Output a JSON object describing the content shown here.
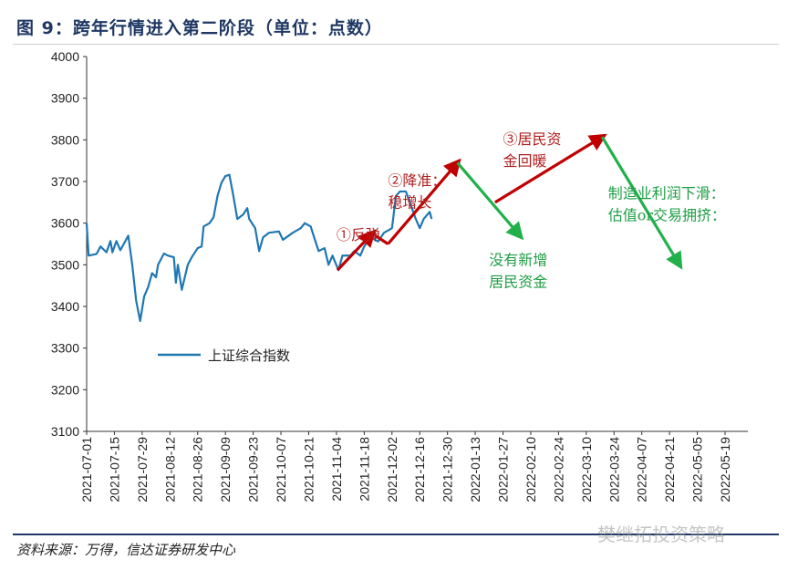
{
  "title": "图 9：跨年行情进入第二阶段（单位：点数）",
  "source": "资料来源：万得，信达证券研发中心",
  "watermark": "樊继拓投资策略",
  "colors": {
    "line": "#1f77b4",
    "up": "#c00000",
    "down": "#22b04b",
    "title": "#1f3864"
  },
  "chart_data": {
    "type": "line",
    "title": "跨年行情进入第二阶段（单位：点数）",
    "xlabel": "",
    "ylabel": "",
    "ylim": [
      3100,
      4000
    ],
    "yticks": [
      3100,
      3200,
      3300,
      3400,
      3500,
      3600,
      3700,
      3800,
      3900,
      4000
    ],
    "x_start_date": "2021-07-01",
    "x_range_days": [
      0,
      322
    ],
    "xticks": [
      "2021-07-01",
      "2021-07-15",
      "2021-07-29",
      "2021-08-12",
      "2021-08-26",
      "2021-09-09",
      "2021-09-23",
      "2021-10-07",
      "2021-10-21",
      "2021-11-04",
      "2021-11-18",
      "2021-12-02",
      "2021-12-16",
      "2021-12-30",
      "2022-01-13",
      "2022-01-27",
      "2022-02-10",
      "2022-02-24",
      "2022-03-10",
      "2022-03-24",
      "2022-04-07",
      "2022-04-21",
      "2022-05-05",
      "2022-05-19"
    ],
    "legend": {
      "label": "上证综合指数",
      "placement": "lower-left"
    },
    "series": [
      {
        "name": "上证综合指数",
        "days": [
          0,
          1,
          5,
          7,
          10,
          12,
          13,
          15,
          17,
          21,
          23,
          25,
          27,
          29,
          31,
          33,
          35,
          36,
          39,
          41,
          44,
          45,
          46,
          48,
          51,
          53,
          56,
          58,
          59,
          62,
          64,
          66,
          68,
          70,
          72,
          74,
          76,
          79,
          81,
          82,
          85,
          87,
          89,
          92,
          97,
          99,
          104,
          108,
          110,
          113,
          115,
          117,
          120,
          122,
          124,
          127,
          129,
          133,
          135,
          138,
          140,
          143,
          147,
          150,
          154,
          156,
          158,
          161,
          163,
          166,
          168,
          170,
          173,
          174
        ],
        "values": [
          3600,
          3522,
          3526,
          3544,
          3530,
          3557,
          3530,
          3557,
          3535,
          3570,
          3500,
          3413,
          3365,
          3424,
          3446,
          3480,
          3470,
          3500,
          3527,
          3522,
          3518,
          3457,
          3500,
          3440,
          3500,
          3518,
          3540,
          3544,
          3592,
          3600,
          3614,
          3665,
          3697,
          3713,
          3716,
          3665,
          3610,
          3621,
          3636,
          3610,
          3588,
          3533,
          3566,
          3577,
          3580,
          3560,
          3577,
          3588,
          3600,
          3592,
          3562,
          3533,
          3540,
          3500,
          3522,
          3487,
          3522,
          3522,
          3533,
          3522,
          3544,
          3566,
          3556,
          3577,
          3588,
          3665,
          3676,
          3676,
          3650,
          3610,
          3588,
          3610,
          3627,
          3610
        ]
      }
    ],
    "arrows": [
      {
        "kind": "up",
        "from": [
          126.5,
          3487
        ],
        "to": [
          144,
          3575
        ]
      },
      {
        "kind": "up",
        "from": [
          144,
          3575
        ],
        "to": [
          152,
          3550
        ],
        "head": false
      },
      {
        "kind": "up",
        "from": [
          152,
          3550
        ],
        "to": [
          187,
          3745
        ]
      },
      {
        "kind": "down",
        "from": [
          187,
          3745
        ],
        "to": [
          218.5,
          3570
        ]
      },
      {
        "kind": "up",
        "from": [
          206,
          3650
        ],
        "to": [
          260,
          3807
        ]
      },
      {
        "kind": "down",
        "from": [
          260,
          3807
        ],
        "to": [
          299,
          3500
        ]
      }
    ],
    "annotations": [
      {
        "kind": "up",
        "lines": [
          "①反弹"
        ],
        "at": [
          126,
          3560
        ]
      },
      {
        "kind": "up",
        "lines": [
          "②降准：",
          "稳增长"
        ],
        "at": [
          152,
          3690
        ]
      },
      {
        "kind": "up",
        "lines": [
          "③居民资",
          "金回暖"
        ],
        "at": [
          210,
          3790
        ]
      },
      {
        "kind": "down",
        "lines": [
          "没有新增",
          "居民资金"
        ],
        "at": [
          203,
          3500
        ]
      },
      {
        "kind": "down",
        "lines": [
          "制造业利润下滑：",
          "估值or交易拥挤："
        ],
        "at": [
          263,
          3660
        ]
      }
    ]
  }
}
